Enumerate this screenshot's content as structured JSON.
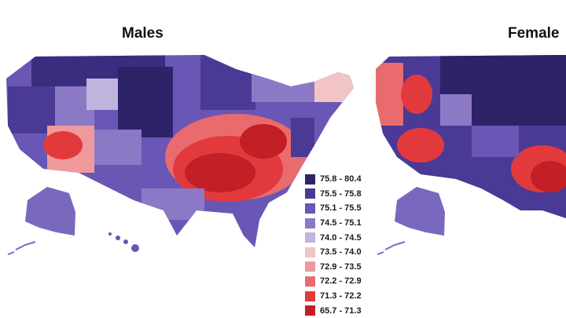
{
  "panels": {
    "males": {
      "title": "Males"
    },
    "females": {
      "title": "Female"
    }
  },
  "legend": {
    "items": [
      {
        "label": "75.8 - 80.4",
        "color": "#2e2368"
      },
      {
        "label": "75.5 - 75.8",
        "color": "#4a3a95"
      },
      {
        "label": "75.1 - 75.5",
        "color": "#6a56b4"
      },
      {
        "label": "74.5 - 75.1",
        "color": "#8b79c6"
      },
      {
        "label": "74.0 - 74.5",
        "color": "#c0b3dd"
      },
      {
        "label": "73.5 - 74.0",
        "color": "#f2c4c6"
      },
      {
        "label": "72.9 - 73.5",
        "color": "#ee9a9c"
      },
      {
        "label": "72.2 - 72.9",
        "color": "#e96b6e"
      },
      {
        "label": "71.3 - 72.2",
        "color": "#e23a3c"
      },
      {
        "label": "65.7 - 71.3",
        "color": "#c21f26"
      }
    ]
  }
}
